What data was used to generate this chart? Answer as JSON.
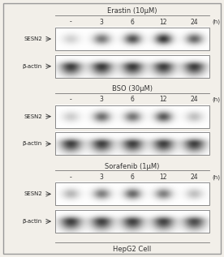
{
  "background_color": "#f2efe9",
  "outer_border_color": "#999999",
  "box_bg": "#f5f3ef",
  "box_border": "#888888",
  "lane_labels": [
    "-",
    "3",
    "6",
    "12",
    "24"
  ],
  "h_label": "(h)",
  "bottom_label": "HepG2 Cell",
  "sections": [
    {
      "title": "Erastin (10μM)",
      "sesn2_label": "SESN2",
      "actin_label": "β-actin",
      "sesn2_bands": [
        0.2,
        0.6,
        0.78,
        0.9,
        0.68
      ],
      "actin_bands": [
        0.88,
        0.9,
        0.9,
        0.88,
        0.88
      ]
    },
    {
      "title": "BSO (30μM)",
      "sesn2_label": "SESN2",
      "actin_label": "β-actin",
      "sesn2_bands": [
        0.22,
        0.65,
        0.62,
        0.75,
        0.28
      ],
      "actin_bands": [
        0.88,
        0.88,
        0.88,
        0.88,
        0.88
      ]
    },
    {
      "title": "Sorafenib (1μM)",
      "sesn2_label": "SESN2",
      "actin_label": "β-actin",
      "sesn2_bands": [
        0.32,
        0.58,
        0.68,
        0.58,
        0.28
      ],
      "actin_bands": [
        0.88,
        0.87,
        0.87,
        0.86,
        0.82
      ]
    }
  ],
  "figsize": [
    2.76,
    3.17
  ],
  "dpi": 100
}
